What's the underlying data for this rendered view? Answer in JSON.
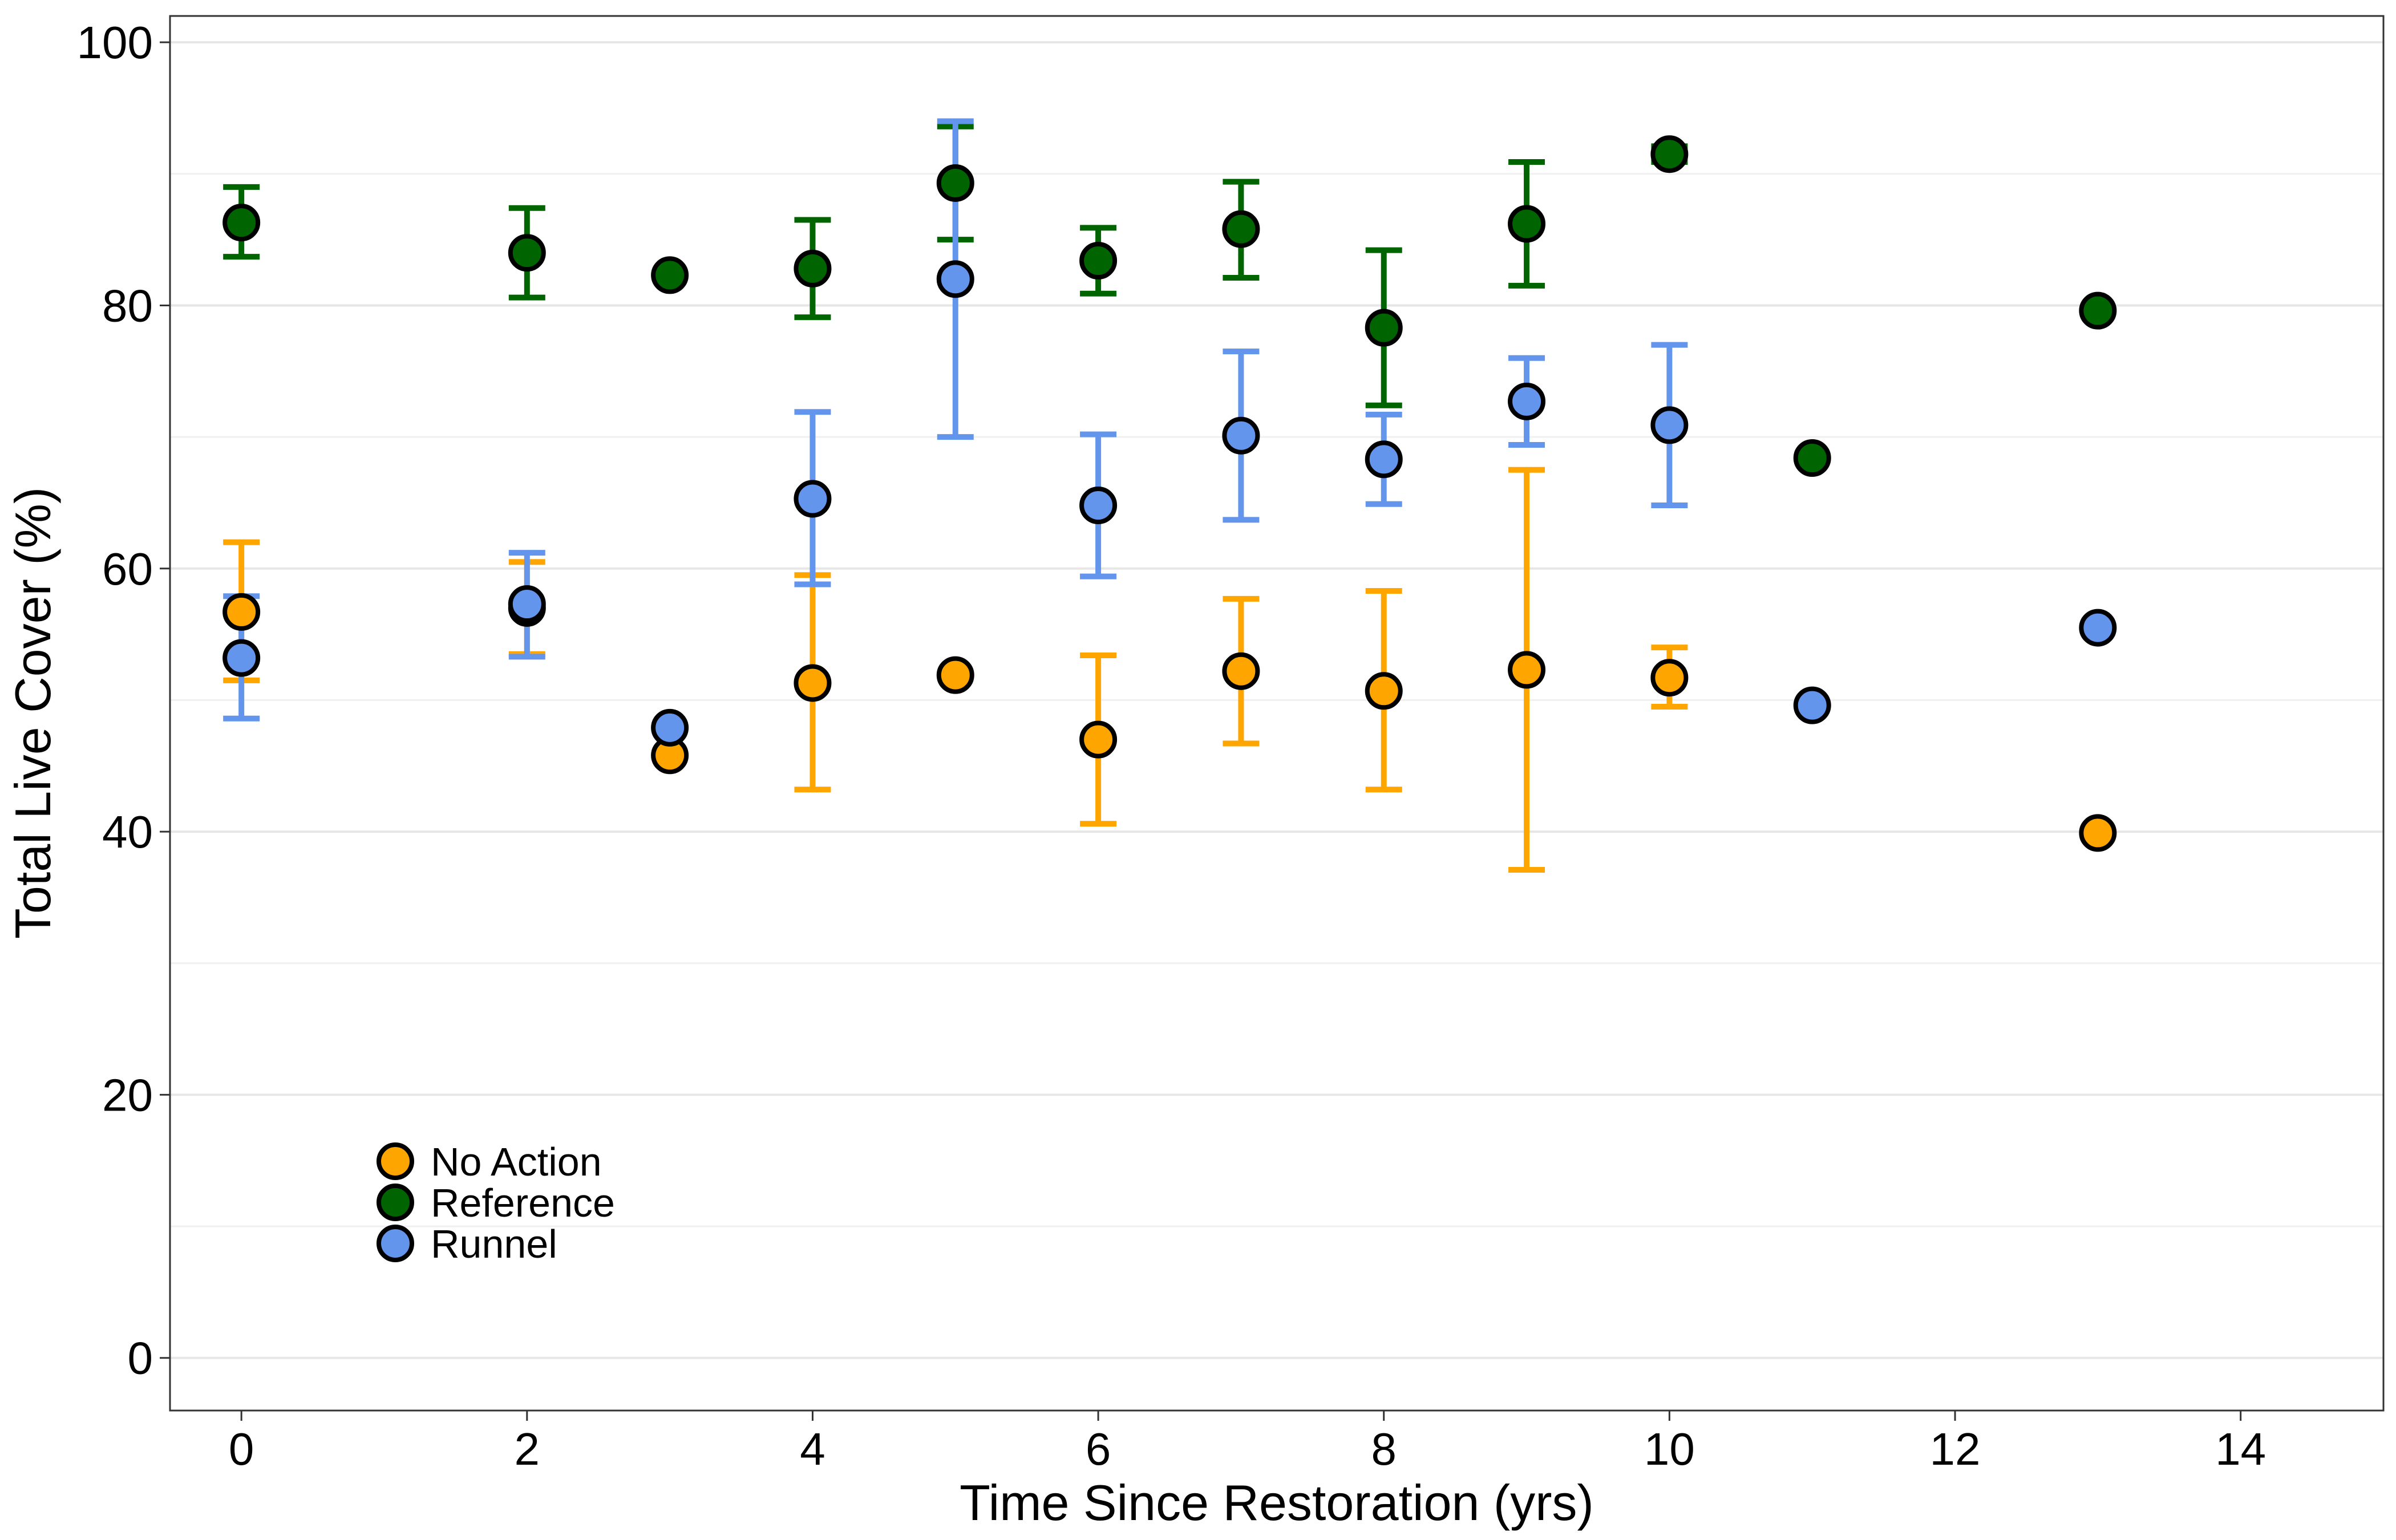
{
  "chart_data": {
    "type": "scatter",
    "title": "",
    "xlabel": "Time Since Restoration (yrs)",
    "ylabel": "Total Live Cover (%)",
    "xlim": [
      -0.5,
      15
    ],
    "ylim": [
      -4,
      102
    ],
    "xticks": [
      0,
      2,
      4,
      6,
      8,
      10,
      12,
      14
    ],
    "yticks": [
      0,
      20,
      40,
      60,
      80,
      100
    ],
    "grid": true,
    "legend_position": "bottom-left",
    "series": [
      {
        "name": "No Action",
        "color": "#FFA500",
        "points": [
          {
            "x": 0,
            "y": 56.7,
            "lo": 51.5,
            "hi": 62.0
          },
          {
            "x": 2,
            "y": 57.0,
            "lo": 53.5,
            "hi": 60.5
          },
          {
            "x": 3,
            "y": 45.8
          },
          {
            "x": 4,
            "y": 51.3,
            "lo": 43.2,
            "hi": 59.5
          },
          {
            "x": 5,
            "y": 51.9
          },
          {
            "x": 6,
            "y": 47.0,
            "lo": 40.6,
            "hi": 53.4
          },
          {
            "x": 7,
            "y": 52.2,
            "lo": 46.7,
            "hi": 57.7
          },
          {
            "x": 8,
            "y": 50.7,
            "lo": 43.2,
            "hi": 58.3
          },
          {
            "x": 9,
            "y": 52.3,
            "lo": 37.1,
            "hi": 67.5
          },
          {
            "x": 10,
            "y": 51.7,
            "lo": 49.5,
            "hi": 54.0
          },
          {
            "x": 13,
            "y": 39.9
          }
        ]
      },
      {
        "name": "Reference",
        "color": "#006400",
        "points": [
          {
            "x": 0,
            "y": 86.3,
            "lo": 83.7,
            "hi": 89.0
          },
          {
            "x": 2,
            "y": 84.0,
            "lo": 80.6,
            "hi": 87.4
          },
          {
            "x": 3,
            "y": 82.3
          },
          {
            "x": 4,
            "y": 82.8,
            "lo": 79.1,
            "hi": 86.5
          },
          {
            "x": 5,
            "y": 89.3,
            "lo": 85.0,
            "hi": 93.6
          },
          {
            "x": 6,
            "y": 83.4,
            "lo": 80.9,
            "hi": 85.9
          },
          {
            "x": 7,
            "y": 85.8,
            "lo": 82.1,
            "hi": 89.4
          },
          {
            "x": 8,
            "y": 78.3,
            "lo": 72.4,
            "hi": 84.2
          },
          {
            "x": 9,
            "y": 86.2,
            "lo": 81.5,
            "hi": 90.9
          },
          {
            "x": 10,
            "y": 91.5,
            "lo": 90.9,
            "hi": 92.1
          },
          {
            "x": 11,
            "y": 68.4
          },
          {
            "x": 13,
            "y": 79.6
          }
        ]
      },
      {
        "name": "Runnel",
        "color": "#6495ED",
        "points": [
          {
            "x": 0,
            "y": 53.2,
            "lo": 48.6,
            "hi": 57.9
          },
          {
            "x": 2,
            "y": 57.3,
            "lo": 53.3,
            "hi": 61.2
          },
          {
            "x": 3,
            "y": 47.9
          },
          {
            "x": 4,
            "y": 65.3,
            "lo": 58.8,
            "hi": 71.9
          },
          {
            "x": 5,
            "y": 82.0,
            "lo": 70.0,
            "hi": 94.0
          },
          {
            "x": 6,
            "y": 64.8,
            "lo": 59.4,
            "hi": 70.2
          },
          {
            "x": 7,
            "y": 70.1,
            "lo": 63.7,
            "hi": 76.5
          },
          {
            "x": 8,
            "y": 68.3,
            "lo": 64.9,
            "hi": 71.7
          },
          {
            "x": 9,
            "y": 72.7,
            "lo": 69.4,
            "hi": 76.0
          },
          {
            "x": 10,
            "y": 70.9,
            "lo": 64.8,
            "hi": 77.0
          },
          {
            "x": 11,
            "y": 49.6
          },
          {
            "x": 13,
            "y": 55.5
          }
        ]
      }
    ]
  }
}
